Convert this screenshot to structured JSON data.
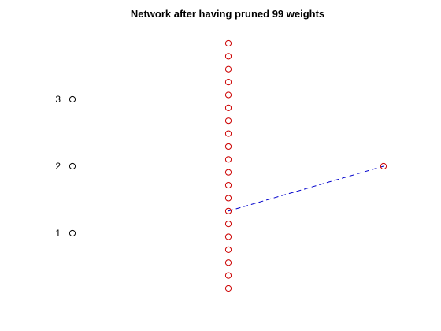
{
  "title": "Network after having pruned 99 weights",
  "network": {
    "input_labels": [
      "1",
      "2",
      "3"
    ],
    "hidden_node_count": 20,
    "output_node_count": 1,
    "remaining_connections": [
      {
        "from_layer": "hidden",
        "from_index": 6,
        "to_layer": "output",
        "to_index": 0,
        "style": "dashed"
      }
    ]
  },
  "colors": {
    "input_node": "#000000",
    "hidden_node": "#cc0000",
    "output_node": "#cc0000",
    "connection": "#0000cc",
    "background": "#ffffff"
  }
}
